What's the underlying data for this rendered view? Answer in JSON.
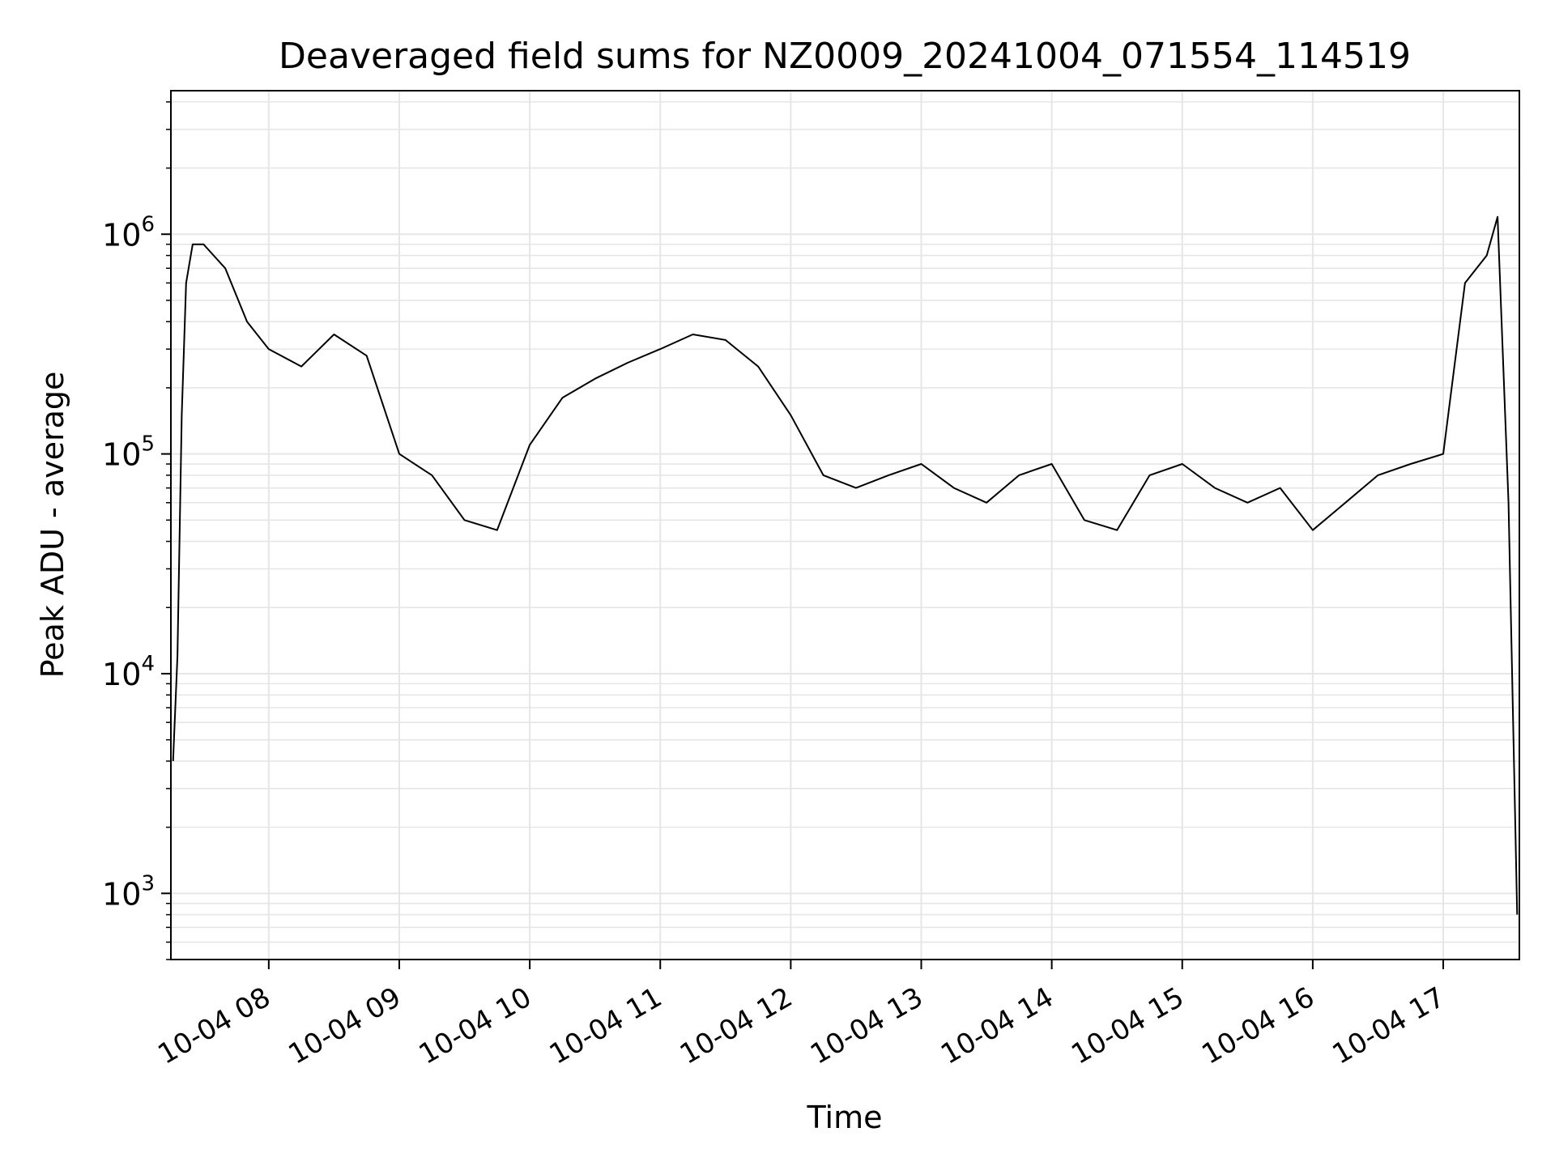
{
  "chart_data": {
    "type": "line",
    "title": "Deaveraged field sums for NZ0009_20241004_071554_114519",
    "xlabel": "Time",
    "ylabel": "Peak ADU - average",
    "yscale": "log",
    "ylim": [
      500,
      4500000
    ],
    "xlim": [
      "2024-10-04 07:15",
      "2024-10-04 17:35"
    ],
    "grid": true,
    "line_color": "#000000",
    "grid_color": "#e6e6e6",
    "xticks": [
      {
        "at": "2024-10-04 08:00",
        "label": "10-04 08"
      },
      {
        "at": "2024-10-04 09:00",
        "label": "10-04 09"
      },
      {
        "at": "2024-10-04 10:00",
        "label": "10-04 10"
      },
      {
        "at": "2024-10-04 11:00",
        "label": "10-04 11"
      },
      {
        "at": "2024-10-04 12:00",
        "label": "10-04 12"
      },
      {
        "at": "2024-10-04 13:00",
        "label": "10-04 13"
      },
      {
        "at": "2024-10-04 14:00",
        "label": "10-04 14"
      },
      {
        "at": "2024-10-04 15:00",
        "label": "10-04 15"
      },
      {
        "at": "2024-10-04 16:00",
        "label": "10-04 16"
      },
      {
        "at": "2024-10-04 17:00",
        "label": "10-04 17"
      }
    ],
    "yticks": [
      {
        "value": 1000,
        "base": "10",
        "exp": "3"
      },
      {
        "value": 10000,
        "base": "10",
        "exp": "4"
      },
      {
        "value": 100000,
        "base": "10",
        "exp": "5"
      },
      {
        "value": 1000000,
        "base": "10",
        "exp": "6"
      }
    ],
    "series": [
      {
        "x": [
          "2024-10-04 07:16",
          "2024-10-04 07:18",
          "2024-10-04 07:20",
          "2024-10-04 07:22",
          "2024-10-04 07:25",
          "2024-10-04 07:30",
          "2024-10-04 07:40",
          "2024-10-04 07:50",
          "2024-10-04 08:00",
          "2024-10-04 08:15",
          "2024-10-04 08:30",
          "2024-10-04 08:45",
          "2024-10-04 09:00",
          "2024-10-04 09:15",
          "2024-10-04 09:30",
          "2024-10-04 09:45",
          "2024-10-04 10:00",
          "2024-10-04 10:15",
          "2024-10-04 10:30",
          "2024-10-04 10:45",
          "2024-10-04 11:00",
          "2024-10-04 11:15",
          "2024-10-04 11:30",
          "2024-10-04 11:45",
          "2024-10-04 12:00",
          "2024-10-04 12:15",
          "2024-10-04 12:30",
          "2024-10-04 12:45",
          "2024-10-04 13:00",
          "2024-10-04 13:15",
          "2024-10-04 13:30",
          "2024-10-04 13:45",
          "2024-10-04 14:00",
          "2024-10-04 14:15",
          "2024-10-04 14:30",
          "2024-10-04 14:45",
          "2024-10-04 15:00",
          "2024-10-04 15:15",
          "2024-10-04 15:30",
          "2024-10-04 15:45",
          "2024-10-04 16:00",
          "2024-10-04 16:15",
          "2024-10-04 16:30",
          "2024-10-04 16:45",
          "2024-10-04 17:00",
          "2024-10-04 17:10",
          "2024-10-04 17:20",
          "2024-10-04 17:25",
          "2024-10-04 17:30",
          "2024-10-04 17:34"
        ],
        "y": [
          4000,
          12000,
          150000,
          600000,
          900000,
          900000,
          700000,
          400000,
          300000,
          250000,
          350000,
          280000,
          100000,
          80000,
          50000,
          45000,
          110000,
          180000,
          220000,
          260000,
          300000,
          350000,
          330000,
          250000,
          150000,
          80000,
          70000,
          80000,
          90000,
          70000,
          60000,
          80000,
          90000,
          50000,
          45000,
          80000,
          90000,
          70000,
          60000,
          70000,
          45000,
          60000,
          80000,
          90000,
          100000,
          600000,
          800000,
          1200000,
          60000,
          800
        ]
      }
    ]
  }
}
